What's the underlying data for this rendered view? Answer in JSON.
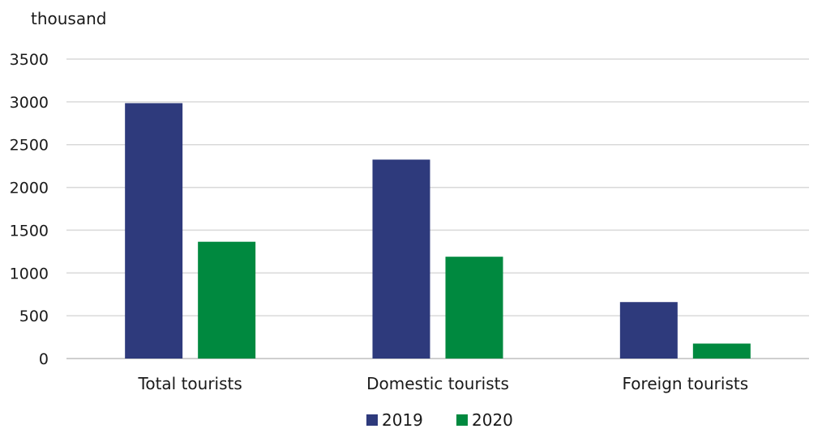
{
  "chart_data": {
    "type": "bar",
    "unit_label": "thousand",
    "categories": [
      "Total tourists",
      "Domestic tourists",
      "Foreign tourists"
    ],
    "series": [
      {
        "name": "2019",
        "color": "#2e3a7c",
        "values": [
          2985,
          2325,
          660
        ]
      },
      {
        "name": "2020",
        "color": "#00893f",
        "values": [
          1365,
          1190,
          175
        ]
      }
    ],
    "ylim": [
      0,
      3500
    ],
    "yticks": [
      0,
      500,
      1000,
      1500,
      2000,
      2500,
      3000,
      3500
    ],
    "grid": true,
    "legend_position": "bottom-center"
  }
}
